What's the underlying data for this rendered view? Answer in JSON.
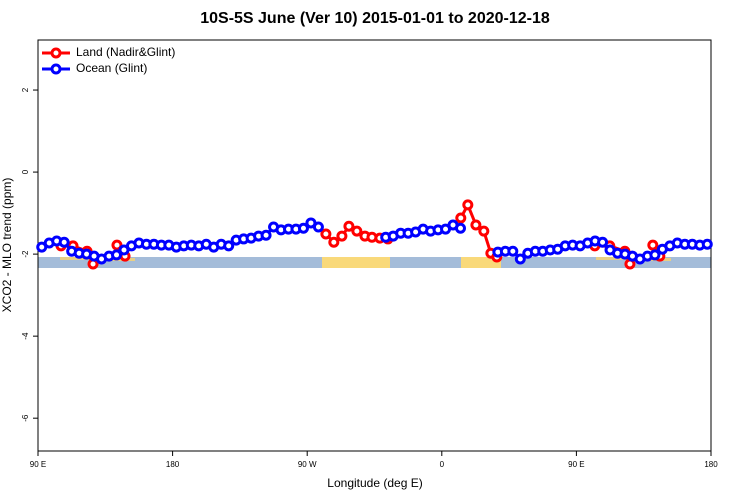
{
  "chart_data": {
    "type": "line",
    "title": "10S-5S June (Ver 10)   2015-01-01 to 2020-12-18",
    "xlabel": "Longitude (deg E)",
    "ylabel": "XCO2 - MLO trend (ppm)",
    "xlim": [
      90,
      540
    ],
    "xticks": [
      {
        "value": 90,
        "label": "90 E"
      },
      {
        "value": 180,
        "label": "180"
      },
      {
        "value": 270,
        "label": "90 W"
      },
      {
        "value": 360,
        "label": "0"
      },
      {
        "value": 450,
        "label": "90 E"
      },
      {
        "value": 540,
        "label": "180"
      }
    ],
    "ylim": [
      -6.8,
      3.22
    ],
    "yticks": [
      2,
      0,
      -2,
      -4,
      -6
    ],
    "legend": "top-left",
    "series": [
      {
        "name": "Land (Nadir&Glint)",
        "color": "#ff0000",
        "x": [
          105.4,
          113.4,
          122.8,
          126.8,
          135,
          142.8,
          148.2,
          200,
          282.5,
          287.8,
          293.2,
          297.9,
          303.2,
          308.6,
          313.3,
          318.6,
          324,
          350,
          372.7,
          377.4,
          382.8,
          388.1,
          392.8,
          396.8,
          430,
          462.3,
          472.3,
          482.4,
          485.8,
          495,
          501.1,
          505.8
        ],
        "values": [
          -1.8,
          -1.8,
          -1.93,
          -2.24,
          null,
          -1.78,
          -2.05,
          null,
          -1.51,
          -1.71,
          -1.56,
          -1.32,
          -1.44,
          -1.56,
          -1.59,
          -1.61,
          -1.63,
          null,
          -1.12,
          -0.8,
          -1.29,
          -1.44,
          -1.98,
          -2.07,
          null,
          -1.8,
          -1.8,
          -1.93,
          -2.24,
          null,
          -1.78,
          -2.05
        ]
      },
      {
        "name": "Ocean (Glint)",
        "color": "#0000ff",
        "x": [
          92.5,
          97.5,
          102.5,
          107.5,
          112.5,
          117.5,
          122.5,
          127.5,
          132.5,
          137.5,
          142.5,
          147.5,
          152.5,
          157.5,
          162.5,
          167.5,
          172.5,
          177.5,
          182.5,
          187.5,
          192.5,
          197.5,
          202.5,
          207.5,
          212.5,
          217.5,
          222.5,
          227.5,
          232.5,
          237.5,
          242.5,
          247.5,
          252.5,
          257.5,
          262.5,
          267.5,
          272.5,
          277.5,
          282.5,
          287.5,
          292.5,
          297.5,
          302.5,
          307.5,
          312.5,
          317.5,
          322.5,
          327.5,
          332.5,
          337.5,
          342.5,
          347.5,
          352.5,
          357.5,
          362.5,
          367.5,
          372.5,
          377.5,
          382.5,
          387.5,
          392.5,
          397.5,
          402.5,
          407.5,
          412.5,
          417.5,
          422.5,
          427.5,
          432.5,
          437.5,
          442.5,
          447.5,
          452.5,
          457.5,
          462.5,
          467.5,
          472.5,
          477.5,
          482.5,
          487.5,
          492.5,
          497.5,
          502.5,
          507.5,
          512.5,
          517.5,
          522.5,
          527.5,
          532.5,
          537.5
        ],
        "values": [
          -1.83,
          -1.73,
          -1.68,
          -1.71,
          -1.93,
          -1.98,
          -2.0,
          -2.05,
          -2.12,
          -2.05,
          -2.02,
          -1.9,
          -1.8,
          -1.73,
          -1.76,
          -1.76,
          -1.78,
          -1.78,
          -1.83,
          -1.8,
          -1.78,
          -1.8,
          -1.76,
          -1.83,
          -1.76,
          -1.8,
          -1.66,
          -1.63,
          -1.61,
          -1.56,
          -1.54,
          -1.34,
          -1.41,
          -1.39,
          -1.39,
          -1.37,
          -1.24,
          -1.34,
          null,
          null,
          null,
          null,
          null,
          null,
          null,
          null,
          -1.59,
          -1.56,
          -1.49,
          -1.49,
          -1.46,
          -1.39,
          -1.44,
          -1.41,
          -1.39,
          -1.29,
          -1.37,
          null,
          null,
          null,
          null,
          -1.95,
          -1.93,
          -1.93,
          -2.12,
          -1.98,
          -1.93,
          -1.93,
          -1.9,
          -1.88,
          -1.8,
          -1.78,
          -1.8,
          -1.73,
          -1.68,
          -1.71,
          -1.9,
          -1.98,
          -2.0,
          -2.05,
          -2.12,
          -2.05,
          -2.02,
          -1.88,
          -1.8,
          -1.73,
          -1.76,
          -1.76,
          -1.78,
          -1.76
        ]
      }
    ]
  }
}
